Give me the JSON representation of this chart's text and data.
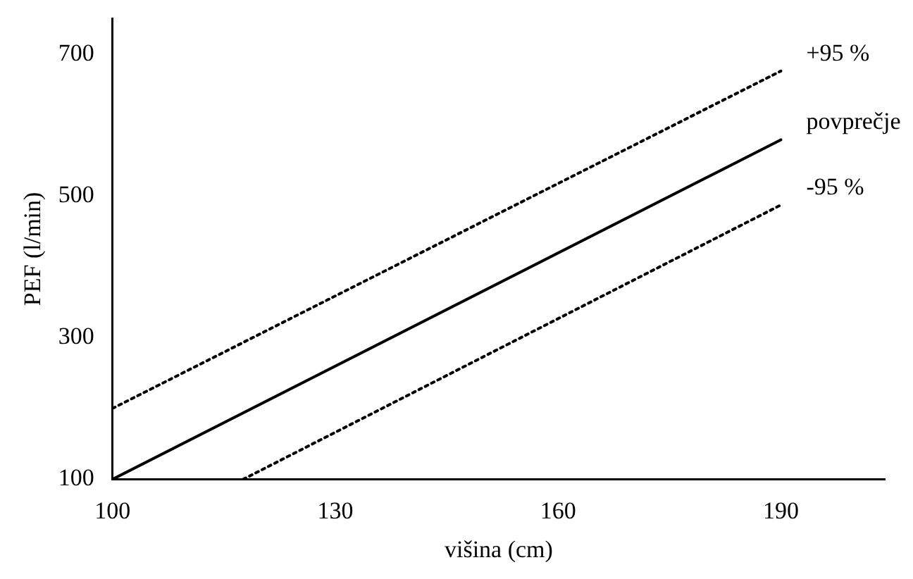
{
  "chart_data": {
    "type": "line",
    "xlabel": "višina (cm)",
    "ylabel": "PEF (l/min)",
    "xlim": [
      100,
      204
    ],
    "ylim": [
      100,
      750
    ],
    "xticks": [
      100,
      130,
      160,
      190
    ],
    "yticks": [
      100,
      300,
      500,
      700
    ],
    "grid": false,
    "legend": false,
    "marker": "none",
    "series": [
      {
        "name": "+95 %",
        "color": "#000000",
        "line_style": "dotted",
        "x": [
          100,
          190
        ],
        "values": [
          200,
          676
        ]
      },
      {
        "name": "povprečje",
        "color": "#000000",
        "line_style": "solid",
        "x": [
          100,
          190
        ],
        "values": [
          100,
          579
        ]
      },
      {
        "name": "-95 %",
        "color": "#000000",
        "line_style": "dotted",
        "x": [
          117.6,
          190
        ],
        "values": [
          100,
          487
        ]
      }
    ]
  }
}
